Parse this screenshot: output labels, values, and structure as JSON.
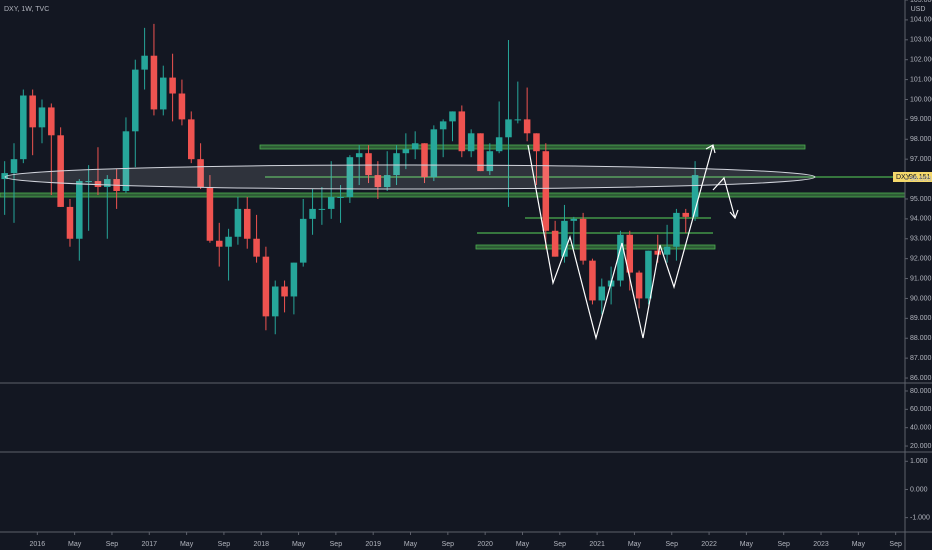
{
  "chart_data": {
    "type": "candlestick",
    "title": "DXY, 1W, TVC",
    "currency": "USD",
    "symbol": "DXY",
    "last_value": 96.151,
    "last_label": "96.151",
    "up_color": "#26a69a",
    "down_color": "#ef5350",
    "x": [
      "2015-09",
      "2015-10",
      "2015-11",
      "2015-12",
      "2016-01",
      "2016-02",
      "2016-03",
      "2016-04",
      "2016-05",
      "2016-06",
      "2016-07",
      "2016-08",
      "2016-09",
      "2016-10",
      "2016-11",
      "2016-12",
      "2017-01",
      "2017-02",
      "2017-03",
      "2017-04",
      "2017-05",
      "2017-06",
      "2017-07",
      "2017-08",
      "2017-09",
      "2017-10",
      "2017-11",
      "2017-12",
      "2018-01",
      "2018-02",
      "2018-03",
      "2018-04",
      "2018-05",
      "2018-06",
      "2018-07",
      "2018-08",
      "2018-09",
      "2018-10",
      "2018-11",
      "2018-12",
      "2019-01",
      "2019-02",
      "2019-03",
      "2019-04",
      "2019-05",
      "2019-06",
      "2019-07",
      "2019-08",
      "2019-09",
      "2019-10",
      "2019-11",
      "2019-12",
      "2020-01",
      "2020-02",
      "2020-03",
      "2020-04",
      "2020-05",
      "2020-06",
      "2020-07",
      "2020-08",
      "2020-09",
      "2020-10",
      "2020-11",
      "2020-12",
      "2021-01",
      "2021-02",
      "2021-03",
      "2021-04",
      "2021-05",
      "2021-06",
      "2021-07",
      "2021-08",
      "2021-09",
      "2021-10",
      "2021-11"
    ],
    "open": [
      96.0,
      96.3,
      97.0,
      100.2,
      98.6,
      99.6,
      98.2,
      94.6,
      93.0,
      95.9,
      95.9,
      95.6,
      96.0,
      95.4,
      98.4,
      101.5,
      102.2,
      99.5,
      101.1,
      100.3,
      99.0,
      97.0,
      95.6,
      92.9,
      92.6,
      93.1,
      94.5,
      93.0,
      92.1,
      89.1,
      90.6,
      90.1,
      91.8,
      94.0,
      94.5,
      94.5,
      95.1,
      95.1,
      97.1,
      97.3,
      96.2,
      95.6,
      96.2,
      97.3,
      97.5,
      97.8,
      96.1,
      98.5,
      98.9,
      99.4,
      97.4,
      98.3,
      96.4,
      97.4,
      98.1,
      99.0,
      99.0,
      98.3,
      97.4,
      93.4,
      92.1,
      93.9,
      94.0,
      91.9,
      89.9,
      90.6,
      90.9,
      93.2,
      91.3,
      90.0,
      92.4,
      92.2,
      92.6,
      94.3,
      94.1
    ],
    "high": [
      96.9,
      97.8,
      100.5,
      100.5,
      100.0,
      99.8,
      98.6,
      95.0,
      96.0,
      96.7,
      97.6,
      96.2,
      96.5,
      99.1,
      102.0,
      103.6,
      103.8,
      101.7,
      102.3,
      101.0,
      99.4,
      97.8,
      96.2,
      93.8,
      93.5,
      95.1,
      95.1,
      94.2,
      92.6,
      90.9,
      90.9,
      91.8,
      95.0,
      95.5,
      95.6,
      96.9,
      95.7,
      97.2,
      97.7,
      97.7,
      96.9,
      97.4,
      97.7,
      98.3,
      98.4,
      97.8,
      98.7,
      99.0,
      99.4,
      99.7,
      98.5,
      98.3,
      97.8,
      99.9,
      102.99,
      100.9,
      100.6,
      98.3,
      97.8,
      93.9,
      94.7,
      94.1,
      94.3,
      92.0,
      91.0,
      91.6,
      93.4,
      93.4,
      91.4,
      92.4,
      93.2,
      93.7,
      94.5,
      94.5,
      96.9
    ],
    "low": [
      94.2,
      93.8,
      96.8,
      97.2,
      97.8,
      95.2,
      94.6,
      92.6,
      91.9,
      93.4,
      95.2,
      93.0,
      94.5,
      95.3,
      96.6,
      100.5,
      99.2,
      99.2,
      98.9,
      98.7,
      96.8,
      95.5,
      92.8,
      91.6,
      90.9,
      92.7,
      92.5,
      91.8,
      88.4,
      88.2,
      89.3,
      89.2,
      91.6,
      93.2,
      93.7,
      94.0,
      93.8,
      94.8,
      95.7,
      95.8,
      95.0,
      95.4,
      95.7,
      96.5,
      97.0,
      95.8,
      95.9,
      97.1,
      97.9,
      97.1,
      97.1,
      96.4,
      96.2,
      97.3,
      94.6,
      98.8,
      97.9,
      95.7,
      92.5,
      92.1,
      91.8,
      92.5,
      91.7,
      89.7,
      89.2,
      89.7,
      90.6,
      90.4,
      89.5,
      89.7,
      91.8,
      91.8,
      91.9,
      93.3,
      93.9
    ],
    "close": [
      96.3,
      97.0,
      100.2,
      98.6,
      99.6,
      98.2,
      94.6,
      93.0,
      95.9,
      95.9,
      95.6,
      96.0,
      95.4,
      98.4,
      101.5,
      102.2,
      99.5,
      101.1,
      100.3,
      99.0,
      97.0,
      95.6,
      92.9,
      92.6,
      93.1,
      94.5,
      93.0,
      92.1,
      89.1,
      90.6,
      90.1,
      91.8,
      94.0,
      94.5,
      94.5,
      95.1,
      95.1,
      97.1,
      97.3,
      96.2,
      95.6,
      96.2,
      97.3,
      97.5,
      97.8,
      96.1,
      98.5,
      98.9,
      99.4,
      97.4,
      98.3,
      96.4,
      97.4,
      98.1,
      99.0,
      99.0,
      98.3,
      97.4,
      93.4,
      92.1,
      93.9,
      94.0,
      91.9,
      89.9,
      90.6,
      90.9,
      93.2,
      91.3,
      90.0,
      92.4,
      92.2,
      92.6,
      94.3,
      94.1,
      96.2
    ],
    "xlim": [
      "2015-09",
      "2023-10"
    ],
    "xticks": [
      {
        "value": "2016-01",
        "label": "2016"
      },
      {
        "value": "2016-05",
        "label": "May"
      },
      {
        "value": "2016-09",
        "label": "Sep"
      },
      {
        "value": "2017-01",
        "label": "2017"
      },
      {
        "value": "2017-05",
        "label": "May"
      },
      {
        "value": "2017-09",
        "label": "Sep"
      },
      {
        "value": "2018-01",
        "label": "2018"
      },
      {
        "value": "2018-05",
        "label": "May"
      },
      {
        "value": "2018-09",
        "label": "Sep"
      },
      {
        "value": "2019-01",
        "label": "2019"
      },
      {
        "value": "2019-05",
        "label": "May"
      },
      {
        "value": "2019-09",
        "label": "Sep"
      },
      {
        "value": "2020-01",
        "label": "2020"
      },
      {
        "value": "2020-05",
        "label": "May"
      },
      {
        "value": "2020-09",
        "label": "Sep"
      },
      {
        "value": "2021-01",
        "label": "2021"
      },
      {
        "value": "2021-05",
        "label": "May"
      },
      {
        "value": "2021-09",
        "label": "Sep"
      },
      {
        "value": "2022-01",
        "label": "2022"
      },
      {
        "value": "2022-05",
        "label": "May"
      },
      {
        "value": "2022-09",
        "label": "Sep"
      },
      {
        "value": "2023-01",
        "label": "2023"
      },
      {
        "value": "2023-05",
        "label": "May"
      },
      {
        "value": "2023-09",
        "label": "Sep"
      }
    ],
    "ylim": [
      85.75,
      105.0
    ],
    "yticks": [
      {
        "value": 86,
        "label": "86.000"
      },
      {
        "value": 87,
        "label": "87.000"
      },
      {
        "value": 88,
        "label": "88.000"
      },
      {
        "value": 89,
        "label": "89.000"
      },
      {
        "value": 90,
        "label": "90.000"
      },
      {
        "value": 91,
        "label": "91.000"
      },
      {
        "value": 92,
        "label": "92.000"
      },
      {
        "value": 93,
        "label": "93.000"
      },
      {
        "value": 94,
        "label": "94.000"
      },
      {
        "value": 95,
        "label": "95.000"
      },
      {
        "value": 96,
        "label": "96.000"
      },
      {
        "value": 97,
        "label": "97.000"
      },
      {
        "value": 98,
        "label": "98.000"
      },
      {
        "value": 99,
        "label": "99.000"
      },
      {
        "value": 100,
        "label": "100.000"
      },
      {
        "value": 101,
        "label": "101.000"
      },
      {
        "value": 102,
        "label": "102.000"
      },
      {
        "value": 103,
        "label": "103.000"
      },
      {
        "value": 104,
        "label": "104.000"
      },
      {
        "value": 105,
        "label": "105.000"
      }
    ],
    "panes": [
      {
        "ylim": [
          13.5,
          88.7
        ],
        "yticks": [
          {
            "value": 20,
            "label": "20.000"
          },
          {
            "value": 40,
            "label": "40.000"
          },
          {
            "value": 60,
            "label": "60.000"
          },
          {
            "value": 80,
            "label": "80.000"
          }
        ]
      },
      {
        "ylim": [
          -1.51,
          1.33
        ],
        "yticks": [
          {
            "value": -1,
            "label": "-1.000"
          },
          {
            "value": 0,
            "label": "0.000"
          },
          {
            "value": 1,
            "label": "1.000"
          }
        ]
      }
    ]
  }
}
